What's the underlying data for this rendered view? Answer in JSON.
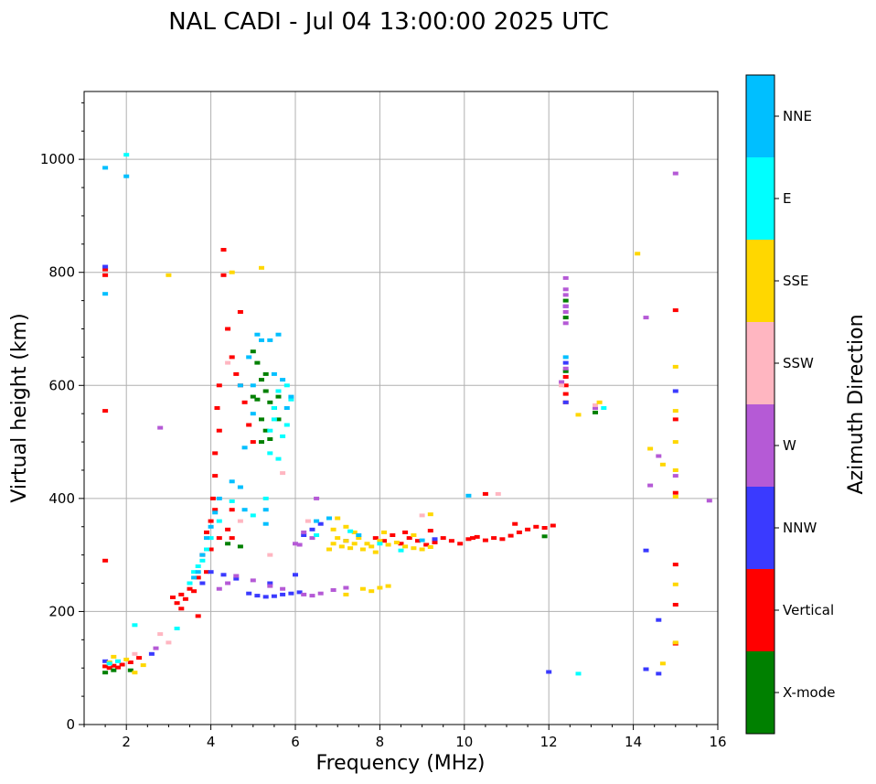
{
  "chart_data": {
    "type": "scatter",
    "title": "NAL CADI - Jul 04 13:00:00 2025 UTC",
    "xlabel": "Frequency (MHz)",
    "ylabel": "Virtual height (km)",
    "xlim": [
      1,
      16
    ],
    "ylim": [
      0,
      1120
    ],
    "xticks": [
      2,
      4,
      6,
      8,
      10,
      12,
      14,
      16
    ],
    "yticks": [
      0,
      200,
      400,
      600,
      800,
      1000
    ],
    "grid": true,
    "colorbar": {
      "title": "Azimuth Direction",
      "categories": [
        {
          "label": "X-mode",
          "color": "#008000"
        },
        {
          "label": "Vertical",
          "color": "#ff0000"
        },
        {
          "label": "NNW",
          "color": "#3a3aff"
        },
        {
          "label": "W",
          "color": "#b55ad6"
        },
        {
          "label": "SSW",
          "color": "#ffb6c1"
        },
        {
          "label": "SSE",
          "color": "#ffd700"
        },
        {
          "label": "E",
          "color": "#00ffff"
        },
        {
          "label": "NNE",
          "color": "#00bfff"
        }
      ]
    },
    "series": [
      {
        "name": "Vertical",
        "color": "#ff0000",
        "points": [
          [
            1.5,
            103
          ],
          [
            1.6,
            100
          ],
          [
            1.7,
            104
          ],
          [
            1.8,
            101
          ],
          [
            1.9,
            106
          ],
          [
            2.1,
            110
          ],
          [
            2.3,
            118
          ],
          [
            1.5,
            805
          ],
          [
            1.5,
            795
          ],
          [
            1.5,
            555
          ],
          [
            1.5,
            290
          ],
          [
            3.1,
            225
          ],
          [
            3.2,
            215
          ],
          [
            3.3,
            230
          ],
          [
            3.4,
            222
          ],
          [
            3.5,
            240
          ],
          [
            3.6,
            236
          ],
          [
            3.7,
            260
          ],
          [
            3.8,
            300
          ],
          [
            3.9,
            340
          ],
          [
            4.0,
            360
          ],
          [
            4.05,
            400
          ],
          [
            4.1,
            440
          ],
          [
            4.1,
            480
          ],
          [
            4.2,
            520
          ],
          [
            4.15,
            560
          ],
          [
            4.2,
            600
          ],
          [
            4.3,
            840
          ],
          [
            4.3,
            795
          ],
          [
            4.4,
            700
          ],
          [
            4.5,
            650
          ],
          [
            4.6,
            620
          ],
          [
            4.7,
            600
          ],
          [
            4.8,
            570
          ],
          [
            4.9,
            530
          ],
          [
            5.0,
            500
          ],
          [
            4.7,
            730
          ],
          [
            4.5,
            380
          ],
          [
            4.4,
            345
          ],
          [
            4.5,
            330
          ],
          [
            4.2,
            330
          ],
          [
            3.9,
            270
          ],
          [
            3.7,
            192
          ],
          [
            3.3,
            205
          ],
          [
            4.0,
            310
          ],
          [
            4.1,
            380
          ],
          [
            7.9,
            330
          ],
          [
            8.1,
            325
          ],
          [
            8.3,
            335
          ],
          [
            8.5,
            320
          ],
          [
            8.7,
            330
          ],
          [
            8.9,
            325
          ],
          [
            9.1,
            318
          ],
          [
            9.3,
            322
          ],
          [
            9.5,
            330
          ],
          [
            9.7,
            325
          ],
          [
            9.9,
            320
          ],
          [
            10.1,
            328
          ],
          [
            10.3,
            332
          ],
          [
            10.5,
            326
          ],
          [
            10.7,
            330
          ],
          [
            10.9,
            328
          ],
          [
            11.1,
            334
          ],
          [
            11.3,
            340
          ],
          [
            11.5,
            345
          ],
          [
            11.7,
            350
          ],
          [
            11.9,
            348
          ],
          [
            12.1,
            352
          ],
          [
            11.2,
            355
          ],
          [
            8.6,
            340
          ],
          [
            9.2,
            343
          ],
          [
            10.2,
            330
          ],
          [
            12.4,
            600
          ],
          [
            12.4,
            585
          ],
          [
            12.4,
            615
          ],
          [
            12.4,
            570
          ],
          [
            15.0,
            733
          ],
          [
            15.0,
            540
          ],
          [
            15.0,
            410
          ],
          [
            15.0,
            283
          ],
          [
            15.0,
            212
          ],
          [
            15.0,
            143
          ],
          [
            10.5,
            408
          ]
        ]
      },
      {
        "name": "X-mode",
        "color": "#008000",
        "points": [
          [
            1.5,
            92
          ],
          [
            1.7,
            96
          ],
          [
            2.1,
            96
          ],
          [
            5.0,
            660
          ],
          [
            5.1,
            640
          ],
          [
            5.2,
            610
          ],
          [
            5.3,
            590
          ],
          [
            5.4,
            570
          ],
          [
            5.2,
            540
          ],
          [
            5.3,
            520
          ],
          [
            5.4,
            505
          ],
          [
            5.5,
            560
          ],
          [
            5.1,
            575
          ],
          [
            5.3,
            620
          ],
          [
            5.0,
            580
          ],
          [
            5.2,
            500
          ],
          [
            5.6,
            580
          ],
          [
            5.6,
            540
          ],
          [
            12.4,
            750
          ],
          [
            12.4,
            720
          ],
          [
            12.4,
            625
          ],
          [
            11.9,
            333
          ],
          [
            13.1,
            552
          ],
          [
            4.4,
            320
          ],
          [
            4.7,
            315
          ]
        ]
      },
      {
        "name": "NNW",
        "color": "#3a3aff",
        "points": [
          [
            1.5,
            810
          ],
          [
            1.5,
            112
          ],
          [
            2.6,
            125
          ],
          [
            3.8,
            250
          ],
          [
            4.0,
            270
          ],
          [
            4.3,
            265
          ],
          [
            4.6,
            258
          ],
          [
            4.9,
            232
          ],
          [
            5.1,
            228
          ],
          [
            5.3,
            226
          ],
          [
            5.5,
            227
          ],
          [
            5.7,
            230
          ],
          [
            5.9,
            232
          ],
          [
            6.1,
            234
          ],
          [
            5.4,
            250
          ],
          [
            6.0,
            265
          ],
          [
            6.2,
            335
          ],
          [
            6.4,
            345
          ],
          [
            6.6,
            355
          ],
          [
            7.2,
            325
          ],
          [
            9.3,
            328
          ],
          [
            12.4,
            640
          ],
          [
            12.4,
            570
          ],
          [
            12.4,
            740
          ],
          [
            12.0,
            93
          ],
          [
            14.3,
            98
          ],
          [
            14.6,
            90
          ],
          [
            14.6,
            185
          ],
          [
            14.3,
            308
          ],
          [
            15.0,
            590
          ]
        ]
      },
      {
        "name": "W",
        "color": "#b55ad6",
        "points": [
          [
            2.7,
            135
          ],
          [
            2.8,
            525
          ],
          [
            4.2,
            240
          ],
          [
            4.4,
            250
          ],
          [
            4.6,
            263
          ],
          [
            5.0,
            255
          ],
          [
            5.4,
            245
          ],
          [
            5.7,
            240
          ],
          [
            6.2,
            230
          ],
          [
            6.4,
            228
          ],
          [
            6.6,
            232
          ],
          [
            6.9,
            238
          ],
          [
            7.2,
            242
          ],
          [
            6.0,
            320
          ],
          [
            6.2,
            340
          ],
          [
            6.4,
            330
          ],
          [
            6.5,
            400
          ],
          [
            6.1,
            318
          ],
          [
            12.4,
            790
          ],
          [
            12.4,
            770
          ],
          [
            12.4,
            760
          ],
          [
            12.4,
            740
          ],
          [
            12.4,
            730
          ],
          [
            12.4,
            710
          ],
          [
            12.4,
            630
          ],
          [
            13.1,
            560
          ],
          [
            12.3,
            606
          ],
          [
            15.0,
            975
          ],
          [
            15.0,
            440
          ],
          [
            14.3,
            720
          ],
          [
            14.4,
            423
          ],
          [
            14.6,
            475
          ],
          [
            15.8,
            396
          ]
        ]
      },
      {
        "name": "SSW",
        "color": "#ffb6c1",
        "points": [
          [
            1.6,
            108
          ],
          [
            1.8,
            112
          ],
          [
            2.2,
            125
          ],
          [
            2.8,
            160
          ],
          [
            3.0,
            145
          ],
          [
            4.4,
            640
          ],
          [
            4.7,
            360
          ],
          [
            5.4,
            300
          ],
          [
            5.7,
            445
          ],
          [
            6.3,
            360
          ],
          [
            9.0,
            370
          ],
          [
            10.8,
            408
          ],
          [
            13.1,
            565
          ],
          [
            12.3,
            600
          ]
        ]
      },
      {
        "name": "SSE",
        "color": "#ffd700",
        "points": [
          [
            1.6,
            110
          ],
          [
            1.7,
            120
          ],
          [
            2.0,
            115
          ],
          [
            2.2,
            92
          ],
          [
            2.4,
            105
          ],
          [
            3.0,
            795
          ],
          [
            4.5,
            800
          ],
          [
            5.2,
            808
          ],
          [
            6.8,
            310
          ],
          [
            6.9,
            320
          ],
          [
            7.0,
            330
          ],
          [
            7.1,
            315
          ],
          [
            7.2,
            325
          ],
          [
            7.3,
            312
          ],
          [
            7.4,
            320
          ],
          [
            7.5,
            330
          ],
          [
            7.6,
            310
          ],
          [
            7.7,
            320
          ],
          [
            7.8,
            315
          ],
          [
            7.9,
            305
          ],
          [
            8.0,
            325
          ],
          [
            8.2,
            318
          ],
          [
            8.4,
            322
          ],
          [
            8.6,
            315
          ],
          [
            8.8,
            312
          ],
          [
            9.0,
            310
          ],
          [
            9.2,
            314
          ],
          [
            7.0,
            365
          ],
          [
            7.2,
            350
          ],
          [
            6.9,
            345
          ],
          [
            7.4,
            340
          ],
          [
            8.1,
            340
          ],
          [
            8.8,
            335
          ],
          [
            9.2,
            372
          ],
          [
            7.6,
            240
          ],
          [
            7.8,
            236
          ],
          [
            8.0,
            242
          ],
          [
            8.2,
            245
          ],
          [
            7.2,
            230
          ],
          [
            12.7,
            548
          ],
          [
            13.2,
            570
          ],
          [
            14.1,
            833
          ],
          [
            14.4,
            488
          ],
          [
            14.7,
            460
          ],
          [
            14.7,
            108
          ],
          [
            15.0,
            633
          ],
          [
            15.0,
            555
          ],
          [
            15.0,
            500
          ],
          [
            15.0,
            450
          ],
          [
            15.0,
            403
          ],
          [
            15.0,
            248
          ],
          [
            15.0,
            145
          ]
        ]
      },
      {
        "name": "E",
        "color": "#00ffff",
        "points": [
          [
            1.6,
            108
          ],
          [
            1.8,
            112
          ],
          [
            2.0,
            1008
          ],
          [
            2.2,
            176
          ],
          [
            3.2,
            170
          ],
          [
            3.5,
            250
          ],
          [
            3.6,
            270
          ],
          [
            3.7,
            280
          ],
          [
            3.8,
            290
          ],
          [
            3.9,
            310
          ],
          [
            4.0,
            330
          ],
          [
            4.2,
            360
          ],
          [
            4.5,
            395
          ],
          [
            5.0,
            370
          ],
          [
            5.3,
            400
          ],
          [
            5.4,
            520
          ],
          [
            5.5,
            560
          ],
          [
            5.6,
            590
          ],
          [
            5.7,
            510
          ],
          [
            5.6,
            470
          ],
          [
            5.5,
            540
          ],
          [
            5.8,
            600
          ],
          [
            5.9,
            575
          ],
          [
            5.4,
            480
          ],
          [
            5.8,
            530
          ],
          [
            6.5,
            335
          ],
          [
            7.3,
            342
          ],
          [
            8.0,
            320
          ],
          [
            8.5,
            308
          ],
          [
            12.7,
            90
          ],
          [
            13.3,
            560
          ]
        ]
      },
      {
        "name": "NNE",
        "color": "#00bfff",
        "points": [
          [
            1.5,
            985
          ],
          [
            1.5,
            762
          ],
          [
            2.0,
            970
          ],
          [
            3.6,
            260
          ],
          [
            3.7,
            270
          ],
          [
            3.8,
            300
          ],
          [
            3.9,
            330
          ],
          [
            4.0,
            350
          ],
          [
            4.1,
            375
          ],
          [
            4.2,
            400
          ],
          [
            4.5,
            430
          ],
          [
            4.7,
            420
          ],
          [
            4.8,
            380
          ],
          [
            4.9,
            650
          ],
          [
            5.0,
            600
          ],
          [
            5.0,
            550
          ],
          [
            5.1,
            690
          ],
          [
            5.2,
            680
          ],
          [
            5.4,
            680
          ],
          [
            5.5,
            620
          ],
          [
            5.6,
            690
          ],
          [
            5.7,
            610
          ],
          [
            5.8,
            560
          ],
          [
            5.9,
            580
          ],
          [
            5.3,
            380
          ],
          [
            5.3,
            355
          ],
          [
            4.8,
            490
          ],
          [
            4.7,
            600
          ],
          [
            6.5,
            360
          ],
          [
            6.8,
            365
          ],
          [
            7.5,
            335
          ],
          [
            9.0,
            326
          ],
          [
            10.1,
            405
          ],
          [
            12.4,
            650
          ]
        ]
      }
    ]
  }
}
